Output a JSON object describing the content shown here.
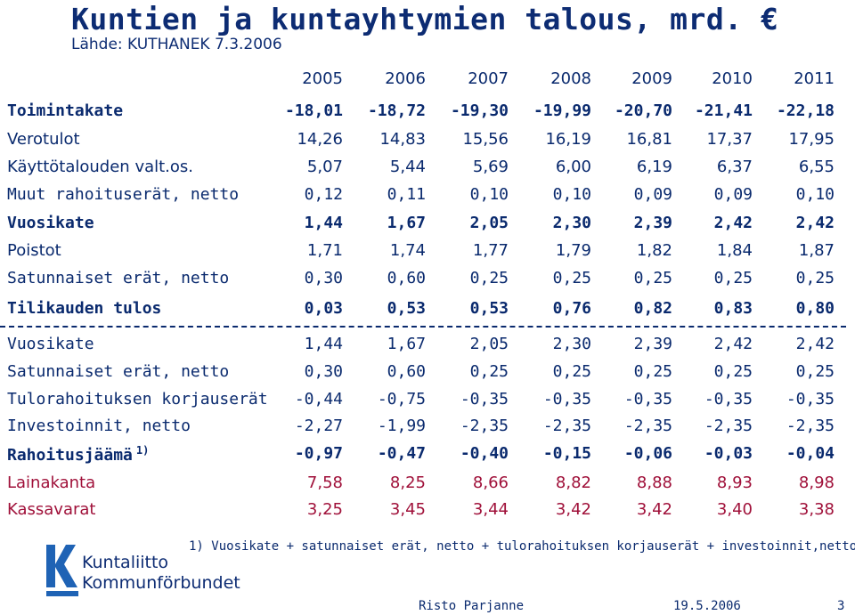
{
  "title": "Kuntien ja kuntayhtymien talous, mrd. €",
  "source": "Lähde: KUTHANEK 7.3.2006",
  "years": [
    "2005",
    "2006",
    "2007",
    "2008",
    "2009",
    "2010",
    "2011"
  ],
  "rows": [
    {
      "label": "Toimintakate",
      "values": [
        "-18,01",
        "-18,72",
        "-19,30",
        "-19,99",
        "-20,70",
        "-21,41",
        "-22,18"
      ],
      "style": "bold"
    },
    {
      "label": "Verotulot",
      "values": [
        "14,26",
        "14,83",
        "15,56",
        "16,19",
        "16,81",
        "17,37",
        "17,95"
      ],
      "style": "normal"
    },
    {
      "label": "Käyttötalouden valt.os.",
      "values": [
        "5,07",
        "5,44",
        "5,69",
        "6,00",
        "6,19",
        "6,37",
        "6,55"
      ],
      "style": "normal"
    },
    {
      "label": "Muut rahoituserät, netto",
      "values": [
        "0,12",
        "0,11",
        "0,10",
        "0,10",
        "0,09",
        "0,09",
        "0,10"
      ],
      "style": "mono"
    },
    {
      "label": "Vuosikate",
      "values": [
        "1,44",
        "1,67",
        "2,05",
        "2,30",
        "2,39",
        "2,42",
        "2,42"
      ],
      "style": "bold"
    },
    {
      "label": "Poistot",
      "values": [
        "1,71",
        "1,74",
        "1,77",
        "1,79",
        "1,82",
        "1,84",
        "1,87"
      ],
      "style": "normal"
    },
    {
      "label": "Satunnaiset erät, netto",
      "values": [
        "0,30",
        "0,60",
        "0,25",
        "0,25",
        "0,25",
        "0,25",
        "0,25"
      ],
      "style": "mono"
    },
    {
      "label": "Tilikauden tulos",
      "values": [
        "0,03",
        "0,53",
        "0,53",
        "0,76",
        "0,82",
        "0,83",
        "0,80"
      ],
      "style": "bold"
    },
    {
      "label": "Vuosikate",
      "values": [
        "1,44",
        "1,67",
        "2,05",
        "2,30",
        "2,39",
        "2,42",
        "2,42"
      ],
      "style": "mono"
    },
    {
      "label": "Satunnaiset erät, netto",
      "values": [
        "0,30",
        "0,60",
        "0,25",
        "0,25",
        "0,25",
        "0,25",
        "0,25"
      ],
      "style": "mono"
    },
    {
      "label": "Tulorahoituksen korjauserät",
      "values": [
        "-0,44",
        "-0,75",
        "-0,35",
        "-0,35",
        "-0,35",
        "-0,35",
        "-0,35"
      ],
      "style": "mono"
    },
    {
      "label": "Investoinnit, netto",
      "values": [
        "-2,27",
        "-1,99",
        "-2,35",
        "-2,35",
        "-2,35",
        "-2,35",
        "-2,35"
      ],
      "style": "mono"
    },
    {
      "label": "Rahoitusjäämä",
      "sup": "1)",
      "values": [
        "-0,97",
        "-0,47",
        "-0,40",
        "-0,15",
        "-0,06",
        "-0,03",
        "-0,04"
      ],
      "style": "bold"
    },
    {
      "label": "Lainakanta",
      "values": [
        "7,58",
        "8,25",
        "8,66",
        "8,82",
        "8,88",
        "8,93",
        "8,98"
      ],
      "style": "red"
    },
    {
      "label": "Kassavarat",
      "values": [
        "3,25",
        "3,45",
        "3,44",
        "3,42",
        "3,42",
        "3,40",
        "3,38"
      ],
      "style": "red"
    }
  ],
  "footnote": "1) Vuosikate + satunnaiset erät, netto + tulorahoituksen korjauserät + investoinnit,netto",
  "logo": {
    "line1": "Kuntaliitto",
    "line2": "Kommunförbundet"
  },
  "footer": {
    "author": "Risto Parjanne",
    "date": "19.5.2006",
    "page": "3"
  },
  "colors": {
    "text": "#0a2a6e",
    "accent_red": "#a0113a",
    "logo_blue": "#1f63b5"
  }
}
